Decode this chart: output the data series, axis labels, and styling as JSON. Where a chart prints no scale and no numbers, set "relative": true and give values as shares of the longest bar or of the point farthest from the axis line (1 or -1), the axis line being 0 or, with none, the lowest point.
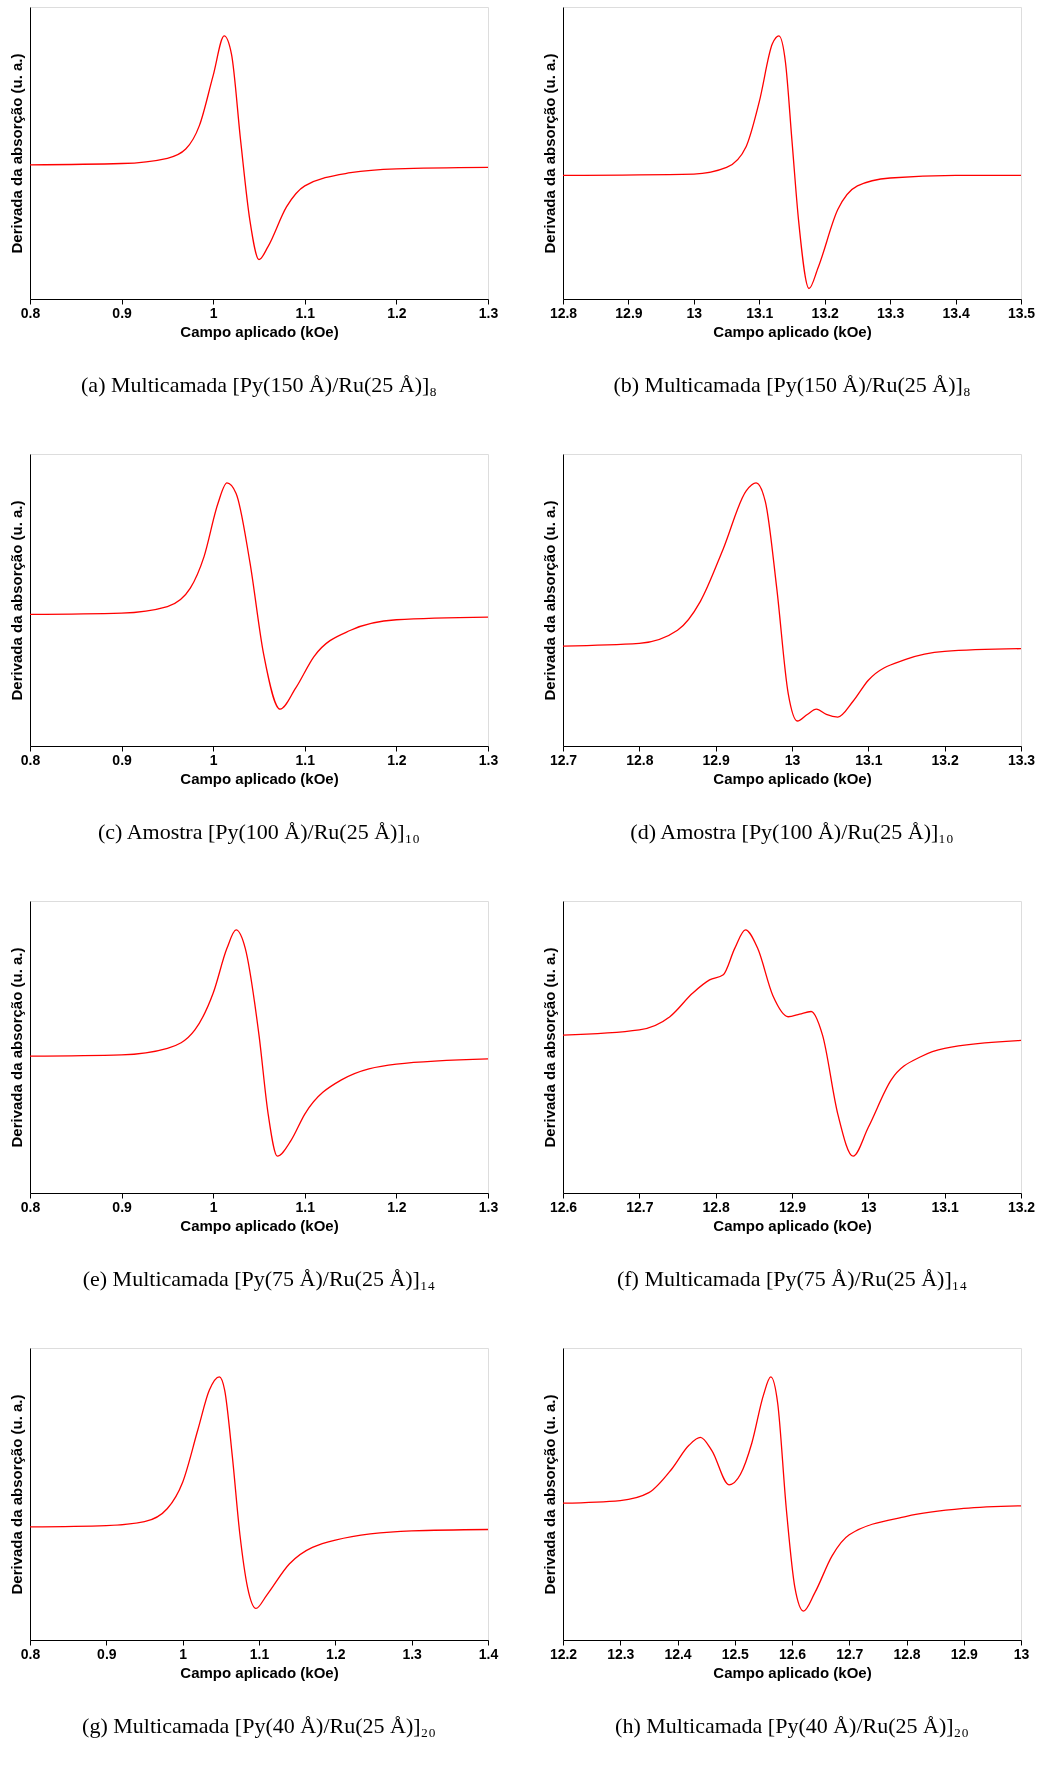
{
  "chart_data": [
    {
      "type": "line",
      "title": "(a) Multicamada [Py(150 Å)/Ru(25 Å)]₈",
      "xlabel": "Campo aplicado (kOe)",
      "ylabel": "Derivada da absorção (u. a.)",
      "relative": true,
      "xlim": [
        0.8,
        1.3
      ],
      "xticks": [
        0.8,
        0.9,
        1,
        1.1,
        1.2,
        1.3
      ],
      "grid": false,
      "x": [
        0.8,
        0.9,
        0.95,
        0.97,
        0.985,
        1.0,
        1.012,
        1.02,
        1.03,
        1.04,
        1.05,
        1.06,
        1.08,
        1.1,
        1.15,
        1.2,
        1.3
      ],
      "series": [
        {
          "color": "#ff0000",
          "values": [
            0.51,
            0.515,
            0.535,
            0.57,
            0.66,
            0.85,
            1.0,
            0.93,
            0.6,
            0.3,
            0.15,
            0.2,
            0.35,
            0.43,
            0.48,
            0.495,
            0.5
          ]
        }
      ]
    },
    {
      "type": "line",
      "title": "(b) Multicamada [Py(150 Å)/Ru(25 Å)]₈",
      "xlabel": "Campo aplicado (kOe)",
      "ylabel": "Derivada da absorção (u. a.)",
      "relative": true,
      "xlim": [
        12.8,
        13.5
      ],
      "xticks": [
        12.8,
        12.9,
        13,
        13.1,
        13.2,
        13.3,
        13.4,
        13.5
      ],
      "grid": false,
      "x": [
        12.8,
        13.0,
        13.05,
        13.08,
        13.1,
        13.12,
        13.13,
        13.14,
        13.15,
        13.16,
        13.176,
        13.19,
        13.22,
        13.25,
        13.3,
        13.4,
        13.5
      ],
      "series": [
        {
          "color": "#ff0000",
          "values": [
            0.47,
            0.475,
            0.5,
            0.58,
            0.75,
            0.97,
            1.0,
            0.9,
            0.6,
            0.3,
            0.04,
            0.12,
            0.34,
            0.43,
            0.46,
            0.47,
            0.47
          ]
        }
      ]
    },
    {
      "type": "line",
      "title": "(c) Amostra [Py(100 Å)/Ru(25 Å)]₁₀",
      "xlabel": "Campo aplicado (kOe)",
      "ylabel": "Derivada da absorção (u. a.)",
      "relative": true,
      "xlim": [
        0.8,
        1.3
      ],
      "xticks": [
        0.8,
        0.9,
        1,
        1.1,
        1.2,
        1.3
      ],
      "grid": false,
      "x": [
        0.8,
        0.9,
        0.95,
        0.975,
        0.99,
        1.005,
        1.015,
        1.025,
        1.04,
        1.055,
        1.073,
        1.09,
        1.11,
        1.15,
        1.2,
        1.3
      ],
      "series": [
        {
          "color": "#ff0000",
          "values": [
            0.5,
            0.505,
            0.53,
            0.6,
            0.72,
            0.92,
            1.0,
            0.96,
            0.7,
            0.35,
            0.14,
            0.22,
            0.34,
            0.44,
            0.48,
            0.49
          ]
        }
      ]
    },
    {
      "type": "line",
      "title": "(d) Amostra [Py(100 Å)/Ru(25 Å)]₁₀",
      "xlabel": "Campo aplicado (kOe)",
      "ylabel": "Derivada da absorção (u. a.)",
      "relative": true,
      "xlim": [
        12.7,
        13.3
      ],
      "xticks": [
        12.7,
        12.8,
        12.9,
        13,
        13.1,
        13.2,
        13.3
      ],
      "grid": false,
      "x": [
        12.7,
        12.8,
        12.85,
        12.88,
        12.91,
        12.94,
        12.953,
        12.965,
        12.98,
        12.995,
        13.007,
        13.02,
        13.032,
        13.045,
        13.06,
        13.08,
        13.1,
        13.15,
        13.2,
        13.3
      ],
      "series": [
        {
          "color": "#ff0000",
          "values": [
            0.38,
            0.39,
            0.44,
            0.55,
            0.75,
            0.97,
            1.0,
            0.93,
            0.6,
            0.2,
            0.095,
            0.12,
            0.14,
            0.12,
            0.11,
            0.17,
            0.25,
            0.33,
            0.36,
            0.37
          ]
        }
      ]
    },
    {
      "type": "line",
      "title": "(e) Multicamada [Py(75 Å)/Ru(25 Å)]₁₄",
      "xlabel": "Campo aplicado (kOe)",
      "ylabel": "Derivada da absorção (u. a.)",
      "relative": true,
      "xlim": [
        0.8,
        1.3
      ],
      "xticks": [
        0.8,
        0.9,
        1,
        1.1,
        1.2,
        1.3
      ],
      "grid": false,
      "x": [
        0.8,
        0.9,
        0.95,
        0.98,
        1.0,
        1.015,
        1.025,
        1.035,
        1.05,
        1.06,
        1.07,
        1.085,
        1.1,
        1.14,
        1.2,
        1.3
      ],
      "series": [
        {
          "color": "#ff0000",
          "values": [
            0.52,
            0.525,
            0.55,
            0.62,
            0.76,
            0.93,
            1.0,
            0.93,
            0.6,
            0.3,
            0.14,
            0.2,
            0.3,
            0.43,
            0.49,
            0.51
          ]
        }
      ]
    },
    {
      "type": "line",
      "title": "(f) Multicamada [Py(75 Å)/Ru(25 Å)]₁₄",
      "xlabel": "Campo aplicado (kOe)",
      "ylabel": "Derivada da absorção (u. a.)",
      "relative": true,
      "xlim": [
        12.6,
        13.2
      ],
      "xticks": [
        12.6,
        12.7,
        12.8,
        12.9,
        13,
        13.1,
        13.2
      ],
      "grid": false,
      "x": [
        12.6,
        12.7,
        12.74,
        12.77,
        12.792,
        12.81,
        12.825,
        12.839,
        12.855,
        12.875,
        12.895,
        12.91,
        12.925,
        12.94,
        12.96,
        12.98,
        13.0,
        13.03,
        13.07,
        13.1,
        13.2
      ],
      "series": [
        {
          "color": "#ff0000",
          "values": [
            0.6,
            0.62,
            0.67,
            0.76,
            0.81,
            0.83,
            0.93,
            1.0,
            0.93,
            0.75,
            0.67,
            0.68,
            0.69,
            0.6,
            0.3,
            0.14,
            0.25,
            0.43,
            0.52,
            0.55,
            0.58
          ]
        }
      ]
    },
    {
      "type": "line",
      "title": "(g) Multicamada [Py(40 Å)/Ru(25 Å)]₂₀",
      "xlabel": "Campo aplicado (kOe)",
      "ylabel": "Derivada da absorção (u. a.)",
      "relative": true,
      "xlim": [
        0.8,
        1.4
      ],
      "xticks": [
        0.8,
        0.9,
        1,
        1.1,
        1.2,
        1.3,
        1.4
      ],
      "grid": false,
      "x": [
        0.8,
        0.9,
        0.95,
        0.98,
        1.0,
        1.02,
        1.035,
        1.048,
        1.055,
        1.065,
        1.075,
        1.085,
        1.096,
        1.11,
        1.14,
        1.2,
        1.3,
        1.4
      ],
      "series": [
        {
          "color": "#ff0000",
          "values": [
            0.43,
            0.435,
            0.45,
            0.5,
            0.6,
            0.8,
            0.95,
            1.0,
            0.95,
            0.7,
            0.4,
            0.2,
            0.12,
            0.17,
            0.29,
            0.38,
            0.415,
            0.42
          ]
        }
      ]
    },
    {
      "type": "line",
      "title": "(h) Multicamada [Py(40 Å)/Ru(25 Å)]₂₀",
      "xlabel": "Campo aplicado (kOe)",
      "ylabel": "Derivada da absorção (u. a.)",
      "relative": true,
      "xlim": [
        12.2,
        13.0
      ],
      "xticks": [
        12.2,
        12.3,
        12.4,
        12.5,
        12.6,
        12.7,
        12.8,
        12.9,
        13
      ],
      "grid": false,
      "x": [
        12.2,
        12.3,
        12.35,
        12.39,
        12.42,
        12.44,
        12.46,
        12.49,
        12.51,
        12.53,
        12.55,
        12.563,
        12.575,
        12.59,
        12.605,
        12.62,
        12.64,
        12.67,
        12.7,
        12.8,
        12.9,
        13.0
      ],
      "series": [
        {
          "color": "#ff0000",
          "values": [
            0.52,
            0.53,
            0.56,
            0.65,
            0.74,
            0.77,
            0.72,
            0.59,
            0.63,
            0.75,
            0.93,
            1.0,
            0.9,
            0.5,
            0.2,
            0.11,
            0.18,
            0.32,
            0.4,
            0.47,
            0.5,
            0.51
          ]
        }
      ]
    }
  ]
}
